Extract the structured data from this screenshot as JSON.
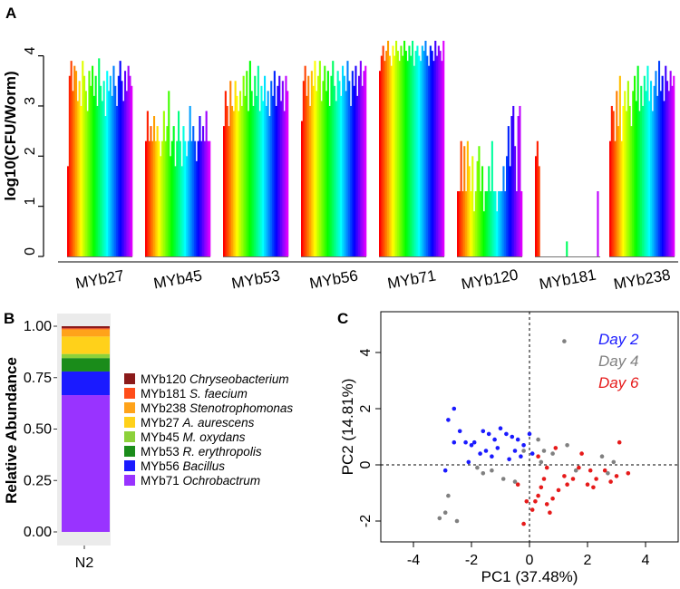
{
  "panels": {
    "a": "A",
    "b": "B",
    "c": "C"
  },
  "chart_data": [
    {
      "panel": "A",
      "type": "bar",
      "ylabel": "log10(CFU/Worm)",
      "yticks": [
        "0",
        "1",
        "2",
        "3",
        "4"
      ],
      "ylim": [
        0,
        4.3
      ],
      "categories": [
        "MYb27",
        "MYb45",
        "MYb53",
        "MYb56",
        "MYb71",
        "MYb120",
        "MYb181",
        "MYb238"
      ],
      "bars_per_group": 40,
      "values": [
        [
          1.8,
          3.6,
          3.9,
          3.3,
          3.8,
          3.7,
          3.1,
          3.5,
          3.0,
          3.9,
          3.6,
          3.3,
          2.9,
          3.7,
          3.4,
          3.8,
          3.2,
          3.6,
          3.0,
          3.95,
          3.4,
          3.1,
          3.5,
          2.8,
          3.7,
          3.3,
          3.6,
          3.2,
          3.8,
          3.4,
          3.0,
          3.6,
          3.9,
          3.5,
          3.1,
          3.7,
          3.3,
          3.8,
          3.6,
          3.4
        ],
        [
          2.3,
          2.9,
          2.3,
          2.6,
          2.3,
          2.8,
          2.3,
          2.6,
          2.3,
          2.0,
          2.3,
          2.9,
          2.3,
          2.6,
          3.3,
          2.0,
          2.3,
          2.6,
          1.8,
          2.3,
          2.9,
          2.3,
          1.8,
          2.6,
          2.3,
          2.0,
          2.3,
          3.0,
          2.3,
          2.6,
          2.3,
          1.9,
          2.3,
          2.8,
          2.3,
          2.6,
          2.3,
          2.9,
          2.3,
          2.3
        ],
        [
          2.6,
          3.3,
          3.0,
          2.6,
          3.5,
          3.0,
          2.9,
          3.5,
          3.2,
          2.9,
          3.3,
          3.0,
          3.6,
          3.2,
          3.7,
          2.9,
          3.9,
          3.3,
          3.0,
          3.6,
          3.2,
          3.8,
          2.9,
          3.4,
          3.1,
          3.6,
          3.0,
          3.3,
          2.8,
          3.5,
          3.2,
          3.7,
          3.0,
          3.4,
          3.6,
          3.1,
          3.5,
          2.9,
          3.6,
          3.3
        ],
        [
          2.7,
          3.5,
          3.8,
          3.2,
          3.6,
          3.0,
          3.7,
          3.4,
          3.9,
          3.3,
          3.6,
          3.9,
          3.1,
          3.5,
          3.8,
          3.3,
          3.7,
          3.0,
          3.6,
          3.9,
          3.4,
          3.1,
          3.7,
          3.5,
          3.2,
          3.8,
          3.6,
          3.3,
          3.9,
          3.5,
          3.0,
          3.7,
          3.4,
          3.8,
          3.2,
          3.6,
          3.9,
          3.4,
          3.7,
          3.8
        ],
        [
          3.7,
          4.0,
          4.2,
          3.9,
          4.1,
          4.3,
          4.0,
          3.8,
          4.2,
          4.0,
          4.3,
          4.1,
          3.9,
          4.2,
          4.0,
          4.3,
          4.1,
          3.9,
          4.2,
          4.0,
          4.3,
          3.8,
          4.1,
          4.2,
          4.0,
          3.9,
          4.2,
          4.1,
          4.3,
          4.0,
          3.8,
          4.2,
          4.1,
          3.9,
          4.3,
          4.0,
          4.2,
          4.1,
          3.9,
          4.3
        ],
        [
          1.3,
          1.3,
          2.3,
          1.3,
          2.2,
          1.3,
          2.3,
          1.8,
          1.3,
          2.0,
          0.9,
          1.3,
          1.9,
          2.2,
          1.3,
          1.8,
          0.9,
          1.3,
          1.3,
          1.8,
          1.3,
          2.3,
          1.3,
          1.3,
          0.9,
          1.3,
          1.3,
          1.3,
          1.8,
          1.3,
          2.0,
          2.6,
          1.8,
          2.8,
          3.0,
          2.2,
          1.3,
          2.8,
          3.0,
          1.3
        ],
        [
          2.0,
          2.3,
          1.8,
          0,
          0,
          0,
          0,
          0,
          0,
          0,
          0,
          0,
          0,
          0,
          0,
          0,
          0,
          0,
          0,
          0.3,
          0,
          0,
          0,
          0,
          0,
          0,
          0,
          0,
          0,
          0,
          0,
          0,
          0,
          0,
          0,
          0,
          0,
          0,
          1.3,
          0
        ],
        [
          2.3,
          3.0,
          2.9,
          2.3,
          3.3,
          2.6,
          3.6,
          2.3,
          3.0,
          3.3,
          2.9,
          3.5,
          3.0,
          2.6,
          3.3,
          3.6,
          3.1,
          3.8,
          2.9,
          3.4,
          3.0,
          3.6,
          3.3,
          3.8,
          3.1,
          3.5,
          2.9,
          3.4,
          3.7,
          3.2,
          3.9,
          3.3,
          3.6,
          3.1,
          3.8,
          3.5,
          3.3,
          3.7,
          3.4,
          3.6
        ]
      ]
    },
    {
      "panel": "B",
      "type": "stacked-bar",
      "ylabel": "Relative Abundance",
      "yticks": [
        "0.00",
        "0.25",
        "0.50",
        "0.75",
        "1.00"
      ],
      "ylim": [
        0,
        1
      ],
      "xlabel": "N2",
      "stack": [
        {
          "strain": "MYb71",
          "species": "Ochrobactrum",
          "value": 0.665,
          "color": "#9933ff"
        },
        {
          "strain": "MYb56",
          "species": "Bacillus",
          "value": 0.115,
          "color": "#1a1aff"
        },
        {
          "strain": "MYb53",
          "species": "R. erythropolis",
          "value": 0.065,
          "color": "#1a8c1a"
        },
        {
          "strain": "MYb45",
          "species": "M. oxydans",
          "value": 0.02,
          "color": "#8cd13a"
        },
        {
          "strain": "MYb27",
          "species": "A. aurescens",
          "value": 0.085,
          "color": "#ffd11a"
        },
        {
          "strain": "MYb238",
          "species": "Stenotrophomonas",
          "value": 0.035,
          "color": "#ffa31a"
        },
        {
          "strain": "MYb181",
          "species": "S. faecium",
          "value": 0.005,
          "color": "#ff4d1a"
        },
        {
          "strain": "MYb120",
          "species": "Chryseobacterium",
          "value": 0.01,
          "color": "#8b1a1a"
        }
      ],
      "legend": [
        {
          "strain": "MYb120",
          "species": "Chryseobacterium",
          "color": "#8b1a1a"
        },
        {
          "strain": "MYb181",
          "species": "S. faecium",
          "color": "#ff4d1a"
        },
        {
          "strain": "MYb238",
          "species": "Stenotrophomonas",
          "color": "#ffa31a"
        },
        {
          "strain": "MYb27",
          "species": "A. aurescens",
          "color": "#ffd11a"
        },
        {
          "strain": "MYb45",
          "species": "M. oxydans",
          "color": "#8cd13a"
        },
        {
          "strain": "MYb53",
          "species": "R. erythropolis",
          "color": "#1a8c1a"
        },
        {
          "strain": "MYb56",
          "species": "Bacillus",
          "color": "#1a1aff"
        },
        {
          "strain": "MYb71",
          "species": "Ochrobactrum",
          "color": "#9933ff"
        }
      ]
    },
    {
      "panel": "C",
      "type": "scatter",
      "xlabel": "PC1 (37.48%)",
      "ylabel": "PC2 (14.81%)",
      "xticks": [
        "-4",
        "-2",
        "0",
        "2",
        "4"
      ],
      "yticks": [
        "-2",
        "0",
        "2",
        "4"
      ],
      "xlim": [
        -5,
        5
      ],
      "ylim": [
        -3,
        5
      ],
      "series": [
        {
          "name": "Day 2",
          "color": "#1a1aff",
          "points": [
            [
              -2.6,
              2.0
            ],
            [
              -2.8,
              1.6
            ],
            [
              -2.4,
              1.2
            ],
            [
              -2.2,
              0.8
            ],
            [
              -2.0,
              0.7
            ],
            [
              -1.9,
              0.8
            ],
            [
              -1.6,
              1.2
            ],
            [
              -1.4,
              1.1
            ],
            [
              -1.2,
              0.9
            ],
            [
              -1.0,
              1.3
            ],
            [
              -0.8,
              1.1
            ],
            [
              -0.6,
              1.0
            ],
            [
              -0.4,
              0.9
            ],
            [
              -0.2,
              0.7
            ],
            [
              0.0,
              1.1
            ],
            [
              -1.5,
              0.5
            ],
            [
              -1.7,
              0.4
            ],
            [
              -2.6,
              0.8
            ],
            [
              -2.9,
              -0.2
            ],
            [
              -1.1,
              0.6
            ],
            [
              -0.5,
              0.5
            ],
            [
              -0.3,
              0.3
            ],
            [
              0.1,
              0.4
            ],
            [
              -0.7,
              0.2
            ],
            [
              -1.3,
              0.3
            ],
            [
              -2.1,
              0.1
            ]
          ]
        },
        {
          "name": "Day 4",
          "color": "#808080",
          "points": [
            [
              1.2,
              4.4
            ],
            [
              -2.8,
              -1.1
            ],
            [
              -2.9,
              -1.7
            ],
            [
              -3.1,
              -1.9
            ],
            [
              -2.5,
              -2.0
            ],
            [
              -1.6,
              -0.3
            ],
            [
              -1.3,
              -0.2
            ],
            [
              -0.9,
              -0.5
            ],
            [
              -0.5,
              -0.6
            ],
            [
              0.3,
              0.9
            ],
            [
              0.5,
              0.5
            ],
            [
              0.8,
              0.4
            ],
            [
              1.3,
              0.7
            ],
            [
              2.5,
              0.3
            ],
            [
              2.7,
              -0.3
            ],
            [
              2.9,
              0.1
            ],
            [
              -0.2,
              0.5
            ],
            [
              0.4,
              0.1
            ],
            [
              1.6,
              -0.2
            ],
            [
              -1.8,
              -0.1
            ]
          ]
        },
        {
          "name": "Day 6",
          "color": "#e61a1a",
          "points": [
            [
              3.1,
              0.8
            ],
            [
              3.4,
              -0.3
            ],
            [
              3.0,
              -0.4
            ],
            [
              2.8,
              -0.6
            ],
            [
              2.6,
              -0.2
            ],
            [
              2.3,
              -0.5
            ],
            [
              2.1,
              -0.2
            ],
            [
              2.0,
              -0.7
            ],
            [
              1.8,
              0.4
            ],
            [
              1.5,
              -0.5
            ],
            [
              1.3,
              -0.7
            ],
            [
              0.9,
              0.6
            ],
            [
              0.6,
              -0.1
            ],
            [
              0.5,
              -0.5
            ],
            [
              0.4,
              -0.8
            ],
            [
              0.3,
              -1.1
            ],
            [
              0.2,
              -1.3
            ],
            [
              0.1,
              -1.6
            ],
            [
              -0.1,
              -1.3
            ],
            [
              -0.2,
              -2.1
            ],
            [
              0.7,
              -1.7
            ],
            [
              0.8,
              -1.2
            ],
            [
              1.0,
              -0.9
            ],
            [
              1.2,
              -0.4
            ],
            [
              0.3,
              0.3
            ],
            [
              -0.4,
              -0.7
            ],
            [
              0.6,
              -1.4
            ],
            [
              2.2,
              -0.8
            ],
            [
              1.7,
              -0.1
            ]
          ]
        }
      ]
    }
  ]
}
